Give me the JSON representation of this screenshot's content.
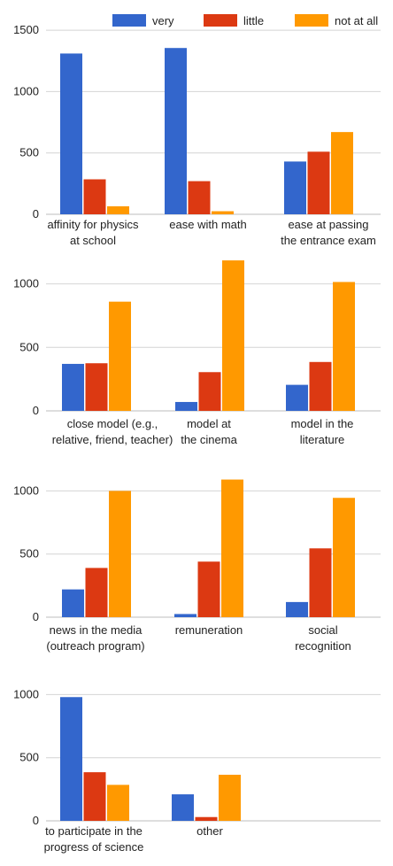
{
  "legend": {
    "labels": [
      "very",
      "little",
      "not at all"
    ]
  },
  "colors": [
    "#3366cc",
    "#dc3912",
    "#ff9900"
  ],
  "chart_data": [
    {
      "type": "bar",
      "categories": [
        [
          "affinity for physics",
          "at school"
        ],
        [
          "ease with math"
        ],
        [
          "ease at passing",
          "the entrance exam"
        ]
      ],
      "series": [
        {
          "name": "very",
          "values": [
            1310,
            1355,
            430
          ]
        },
        {
          "name": "little",
          "values": [
            285,
            270,
            510
          ]
        },
        {
          "name": "not at all",
          "values": [
            65,
            25,
            670
          ]
        }
      ],
      "ylim": [
        0,
        1500
      ],
      "yticks": [
        "0",
        "500",
        "1000",
        "1500"
      ],
      "grid": true,
      "legend_position": "top"
    },
    {
      "type": "bar",
      "categories": [
        [
          "close model (e.g.,",
          "relative, friend, teacher)"
        ],
        [
          "model at",
          "the cinema"
        ],
        [
          "model in the",
          "literature"
        ]
      ],
      "series": [
        {
          "name": "very",
          "values": [
            370,
            70,
            205
          ]
        },
        {
          "name": "little",
          "values": [
            375,
            305,
            385
          ]
        },
        {
          "name": "not at all",
          "values": [
            860,
            1185,
            1015
          ]
        }
      ],
      "ylim": [
        0,
        1200
      ],
      "yticks": [
        "0",
        "500",
        "1000"
      ],
      "grid": true
    },
    {
      "type": "bar",
      "categories": [
        [
          "news in the media",
          "(outreach program)"
        ],
        [
          "remuneration"
        ],
        [
          "social",
          "recognition"
        ]
      ],
      "series": [
        {
          "name": "very",
          "values": [
            220,
            25,
            120
          ]
        },
        {
          "name": "little",
          "values": [
            390,
            440,
            545
          ]
        },
        {
          "name": "not at all",
          "values": [
            1000,
            1090,
            945
          ]
        }
      ],
      "ylim": [
        0,
        1100
      ],
      "yticks": [
        "0",
        "500",
        "1000"
      ],
      "grid": true
    },
    {
      "type": "bar",
      "categories": [
        [
          "to participate in the",
          "progress of science"
        ],
        [
          "other"
        ]
      ],
      "series": [
        {
          "name": "very",
          "values": [
            980,
            210
          ]
        },
        {
          "name": "little",
          "values": [
            385,
            30
          ]
        },
        {
          "name": "not at all",
          "values": [
            285,
            365
          ]
        }
      ],
      "ylim": [
        0,
        1000
      ],
      "yticks": [
        "0",
        "500",
        "1000"
      ],
      "grid": true
    }
  ]
}
